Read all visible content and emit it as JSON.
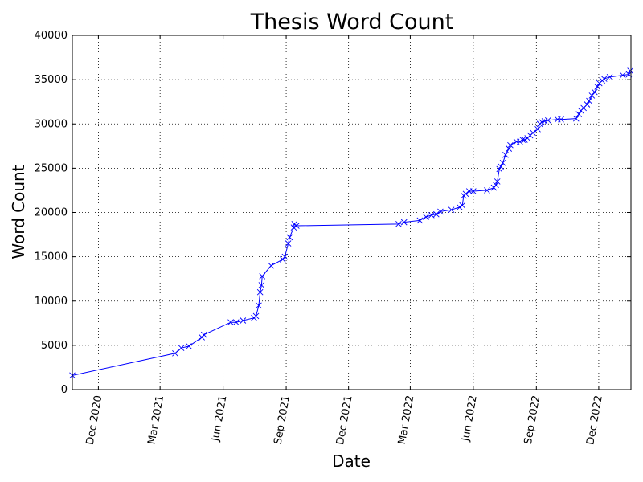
{
  "chart_data": {
    "type": "line",
    "title": "Thesis Word Count",
    "xlabel": "Date",
    "ylabel": "Word Count",
    "x_axis_type": "date",
    "xlim": [
      "2020-10-24",
      "2023-01-17"
    ],
    "ylim": [
      0,
      40000
    ],
    "grid": true,
    "grid_style": "dotted",
    "x_ticks": [
      {
        "date": "2020-12-01",
        "label": "Dec 2020"
      },
      {
        "date": "2021-03-01",
        "label": "Mar 2021"
      },
      {
        "date": "2021-06-01",
        "label": "Jun 2021"
      },
      {
        "date": "2021-09-01",
        "label": "Sep 2021"
      },
      {
        "date": "2021-12-01",
        "label": "Dec 2021"
      },
      {
        "date": "2022-03-01",
        "label": "Mar 2022"
      },
      {
        "date": "2022-06-01",
        "label": "Jun 2022"
      },
      {
        "date": "2022-09-01",
        "label": "Sep 2022"
      },
      {
        "date": "2022-12-01",
        "label": "Dec 2022"
      }
    ],
    "y_ticks": [
      0,
      5000,
      10000,
      15000,
      20000,
      25000,
      30000,
      35000,
      40000
    ],
    "series": [
      {
        "color": "#0000ff",
        "marker": "x",
        "points": [
          [
            "2020-10-24",
            1600
          ],
          [
            "2021-03-23",
            4100
          ],
          [
            "2021-04-01",
            4700
          ],
          [
            "2021-04-12",
            4900
          ],
          [
            "2021-05-01",
            5900
          ],
          [
            "2021-05-04",
            6200
          ],
          [
            "2021-06-12",
            7600
          ],
          [
            "2021-06-20",
            7600
          ],
          [
            "2021-06-30",
            7800
          ],
          [
            "2021-07-16",
            8100
          ],
          [
            "2021-07-19",
            8300
          ],
          [
            "2021-07-23",
            9500
          ],
          [
            "2021-07-25",
            11000
          ],
          [
            "2021-07-27",
            11800
          ],
          [
            "2021-07-28",
            12800
          ],
          [
            "2021-08-10",
            14000
          ],
          [
            "2021-08-27",
            14700
          ],
          [
            "2021-08-30",
            15000
          ],
          [
            "2021-09-04",
            16500
          ],
          [
            "2021-09-06",
            17200
          ],
          [
            "2021-09-12",
            18300
          ],
          [
            "2021-09-13",
            18700
          ],
          [
            "2021-09-16",
            18500
          ],
          [
            "2022-02-12",
            18700
          ],
          [
            "2022-02-20",
            18900
          ],
          [
            "2022-03-15",
            19100
          ],
          [
            "2022-03-24",
            19500
          ],
          [
            "2022-04-01",
            19700
          ],
          [
            "2022-04-08",
            19800
          ],
          [
            "2022-04-14",
            20100
          ],
          [
            "2022-04-30",
            20300
          ],
          [
            "2022-05-12",
            20600
          ],
          [
            "2022-05-16",
            20800
          ],
          [
            "2022-05-18",
            21900
          ],
          [
            "2022-05-21",
            22100
          ],
          [
            "2022-05-26",
            22400
          ],
          [
            "2022-06-01",
            22400
          ],
          [
            "2022-06-21",
            22500
          ],
          [
            "2022-07-01",
            22800
          ],
          [
            "2022-07-04",
            23100
          ],
          [
            "2022-07-06",
            23500
          ],
          [
            "2022-07-09",
            24900
          ],
          [
            "2022-07-11",
            25200
          ],
          [
            "2022-07-14",
            25600
          ],
          [
            "2022-07-18",
            26500
          ],
          [
            "2022-07-23",
            27200
          ],
          [
            "2022-07-25",
            27600
          ],
          [
            "2022-08-03",
            28000
          ],
          [
            "2022-08-08",
            28000
          ],
          [
            "2022-08-12",
            28200
          ],
          [
            "2022-08-15",
            28200
          ],
          [
            "2022-08-19",
            28400
          ],
          [
            "2022-08-23",
            28700
          ],
          [
            "2022-08-27",
            29000
          ],
          [
            "2022-09-03",
            29400
          ],
          [
            "2022-09-06",
            30000
          ],
          [
            "2022-09-09",
            30200
          ],
          [
            "2022-09-13",
            30300
          ],
          [
            "2022-09-18",
            30400
          ],
          [
            "2022-10-02",
            30500
          ],
          [
            "2022-10-07",
            30500
          ],
          [
            "2022-10-29",
            30600
          ],
          [
            "2022-11-02",
            31100
          ],
          [
            "2022-11-05",
            31500
          ],
          [
            "2022-11-09",
            31800
          ],
          [
            "2022-11-14",
            32200
          ],
          [
            "2022-11-17",
            32600
          ],
          [
            "2022-11-21",
            33200
          ],
          [
            "2022-11-25",
            33600
          ],
          [
            "2022-11-29",
            34200
          ],
          [
            "2022-12-02",
            34600
          ],
          [
            "2022-12-06",
            34900
          ],
          [
            "2022-12-09",
            35100
          ],
          [
            "2022-12-17",
            35300
          ],
          [
            "2023-01-05",
            35500
          ],
          [
            "2023-01-14",
            35600
          ],
          [
            "2023-01-16",
            36000
          ]
        ]
      }
    ]
  }
}
